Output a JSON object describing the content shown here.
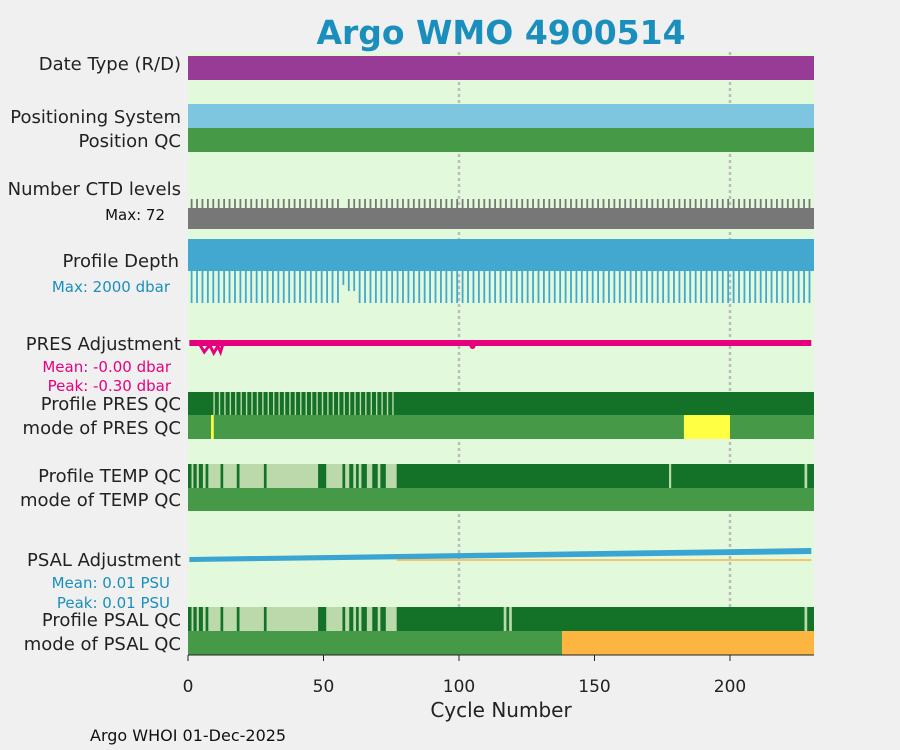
{
  "chart_data": {
    "type": "cycle-timeline",
    "title": "Argo WMO 4900514",
    "xlabel": "Cycle Number",
    "xlim": [
      0,
      231
    ],
    "xticks": [
      0,
      50,
      100,
      150,
      200
    ],
    "footer": "Argo WHOI 01-Dec-2025",
    "rows": [
      {
        "key": "date_type",
        "label": "Date Type (R/D)",
        "segments": [
          {
            "from": 0,
            "to": 231,
            "value": "D"
          }
        ]
      },
      {
        "key": "pos_system",
        "label": "Positioning System",
        "segments": [
          {
            "from": 0,
            "to": 231,
            "value": "ARGOS"
          }
        ]
      },
      {
        "key": "pos_qc",
        "label": "Position QC",
        "segments": [
          {
            "from": 0,
            "to": 231,
            "value": "1"
          }
        ]
      },
      {
        "key": "ctd_levels",
        "label": "Number CTD levels",
        "note": "Max: 72"
      },
      {
        "key": "profile_depth",
        "label": "Profile Depth",
        "note": "Max: 2000 dbar"
      },
      {
        "key": "pres_adj",
        "label": "PRES Adjustment",
        "notes": [
          "Mean: -0.00 dbar",
          "Peak: -0.30 dbar"
        ]
      },
      {
        "key": "prof_pres_qc",
        "label": "Profile PRES QC",
        "segments": [
          {
            "from": 0,
            "to": 8,
            "value": "A"
          },
          {
            "from": 8,
            "to": 76,
            "value": "A/B mix"
          },
          {
            "from": 76,
            "to": 231,
            "value": "A"
          }
        ]
      },
      {
        "key": "mode_pres_qc",
        "label": "mode of PRES QC",
        "segments": [
          {
            "from": 0,
            "to": 8.5,
            "value": "1"
          },
          {
            "from": 8.5,
            "to": 9.5,
            "value": "3"
          },
          {
            "from": 9.5,
            "to": 183,
            "value": "1"
          },
          {
            "from": 183,
            "to": 200,
            "value": "3"
          },
          {
            "from": 200,
            "to": 231,
            "value": "1"
          }
        ]
      },
      {
        "key": "prof_temp_qc",
        "label": "Profile TEMP QC",
        "segments": [
          {
            "from": 0,
            "to": 77,
            "value": "A/B mix"
          },
          {
            "from": 77,
            "to": 231,
            "value": "A"
          }
        ]
      },
      {
        "key": "mode_temp_qc",
        "label": "mode of TEMP QC",
        "segments": [
          {
            "from": 0,
            "to": 231,
            "value": "1"
          }
        ]
      },
      {
        "key": "psal_adj",
        "label": "PSAL Adjustment",
        "notes": [
          "Mean: 0.01 PSU",
          "Peak: 0.01 PSU"
        ],
        "start": 0.002,
        "end": 0.012
      },
      {
        "key": "prof_psal_qc",
        "label": "Profile PSAL QC",
        "segments": [
          {
            "from": 0,
            "to": 77,
            "value": "A/B mix"
          },
          {
            "from": 77,
            "to": 231,
            "value": "A"
          }
        ]
      },
      {
        "key": "mode_psal_qc",
        "label": "mode of PSAL QC",
        "segments": [
          {
            "from": 0,
            "to": 138,
            "value": "1"
          },
          {
            "from": 138,
            "to": 231,
            "value": "2"
          }
        ]
      }
    ],
    "ctd_levels_max": 72,
    "profile_depth_max_dbar": 2000,
    "colors": {
      "panel": "#e3f9dc",
      "date_type": "#983b96",
      "pos_system": "#7ec5e0",
      "qc_good": "#459947",
      "qc_dark": "#137228",
      "qc_light": "#bcd9ab",
      "qc_yellow": "#ffff44",
      "qc_orange": "#fbb540",
      "ctd": "#777777",
      "depth": "#42a8cf",
      "pres": "#e6007e",
      "psal": "#3aa4d2",
      "title": "#1a8fbd"
    }
  }
}
